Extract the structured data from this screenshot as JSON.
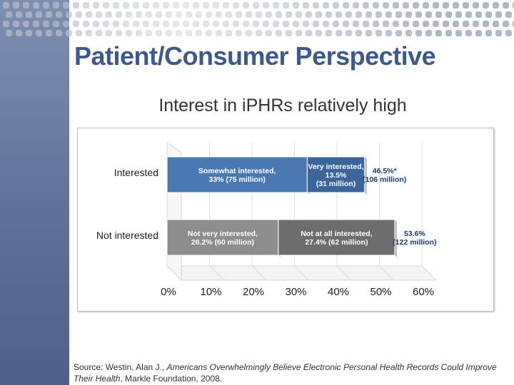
{
  "slide": {
    "title": "Patient/Consumer Perspective",
    "subtitle": "Interest in iPHRs relatively high"
  },
  "source": {
    "prefix": "Source: Westin, Alan J., ",
    "italic_title": "Americans Overwhelmingly Believe Electronic Personal Health Records Could Improve Their Health",
    "suffix": ", Markle Foundation, 2008."
  },
  "colors": {
    "title": "#3e5a8c",
    "band": "#5f7198",
    "somewhat_interested": "#4a78b2",
    "very_interested": "#3b659b",
    "not_very_interested": "#8d8d8d",
    "not_at_all_interested": "#6d6d6d",
    "totals": "#1f3c66"
  },
  "chart_data": {
    "type": "bar",
    "orientation": "horizontal",
    "stacked": true,
    "title": "",
    "xlabel": "",
    "ylabel": "",
    "xlim": [
      0,
      60
    ],
    "xticks": [
      "0%",
      "10%",
      "20%",
      "30%",
      "40%",
      "50%",
      "60%"
    ],
    "categories": [
      "Interested",
      "Not interested"
    ],
    "bars": [
      {
        "category": "Interested",
        "total_label": [
          "46.5%*",
          "(106 million)"
        ],
        "segments": [
          {
            "name": "Somewhat interested",
            "value": 33,
            "label": [
              "Somewhat interested,",
              "33%  (75 million)"
            ],
            "color": "#4a78b2"
          },
          {
            "name": "Very interested",
            "value": 13.5,
            "label": [
              "Very interested,",
              "13.5%",
              "(31 million)"
            ],
            "color": "#3b659b"
          }
        ]
      },
      {
        "category": "Not interested",
        "total_label": [
          "53.6%",
          "(122 million)"
        ],
        "segments": [
          {
            "name": "Not very interested",
            "value": 26.2,
            "label": [
              "Not very interested,",
              "26.2% (60 million)"
            ],
            "color": "#8d8d8d"
          },
          {
            "name": "Not at all interested",
            "value": 27.4,
            "label": [
              "Not at all interested,",
              "27.4% (62 million)"
            ],
            "color": "#6d6d6d"
          }
        ]
      }
    ]
  }
}
